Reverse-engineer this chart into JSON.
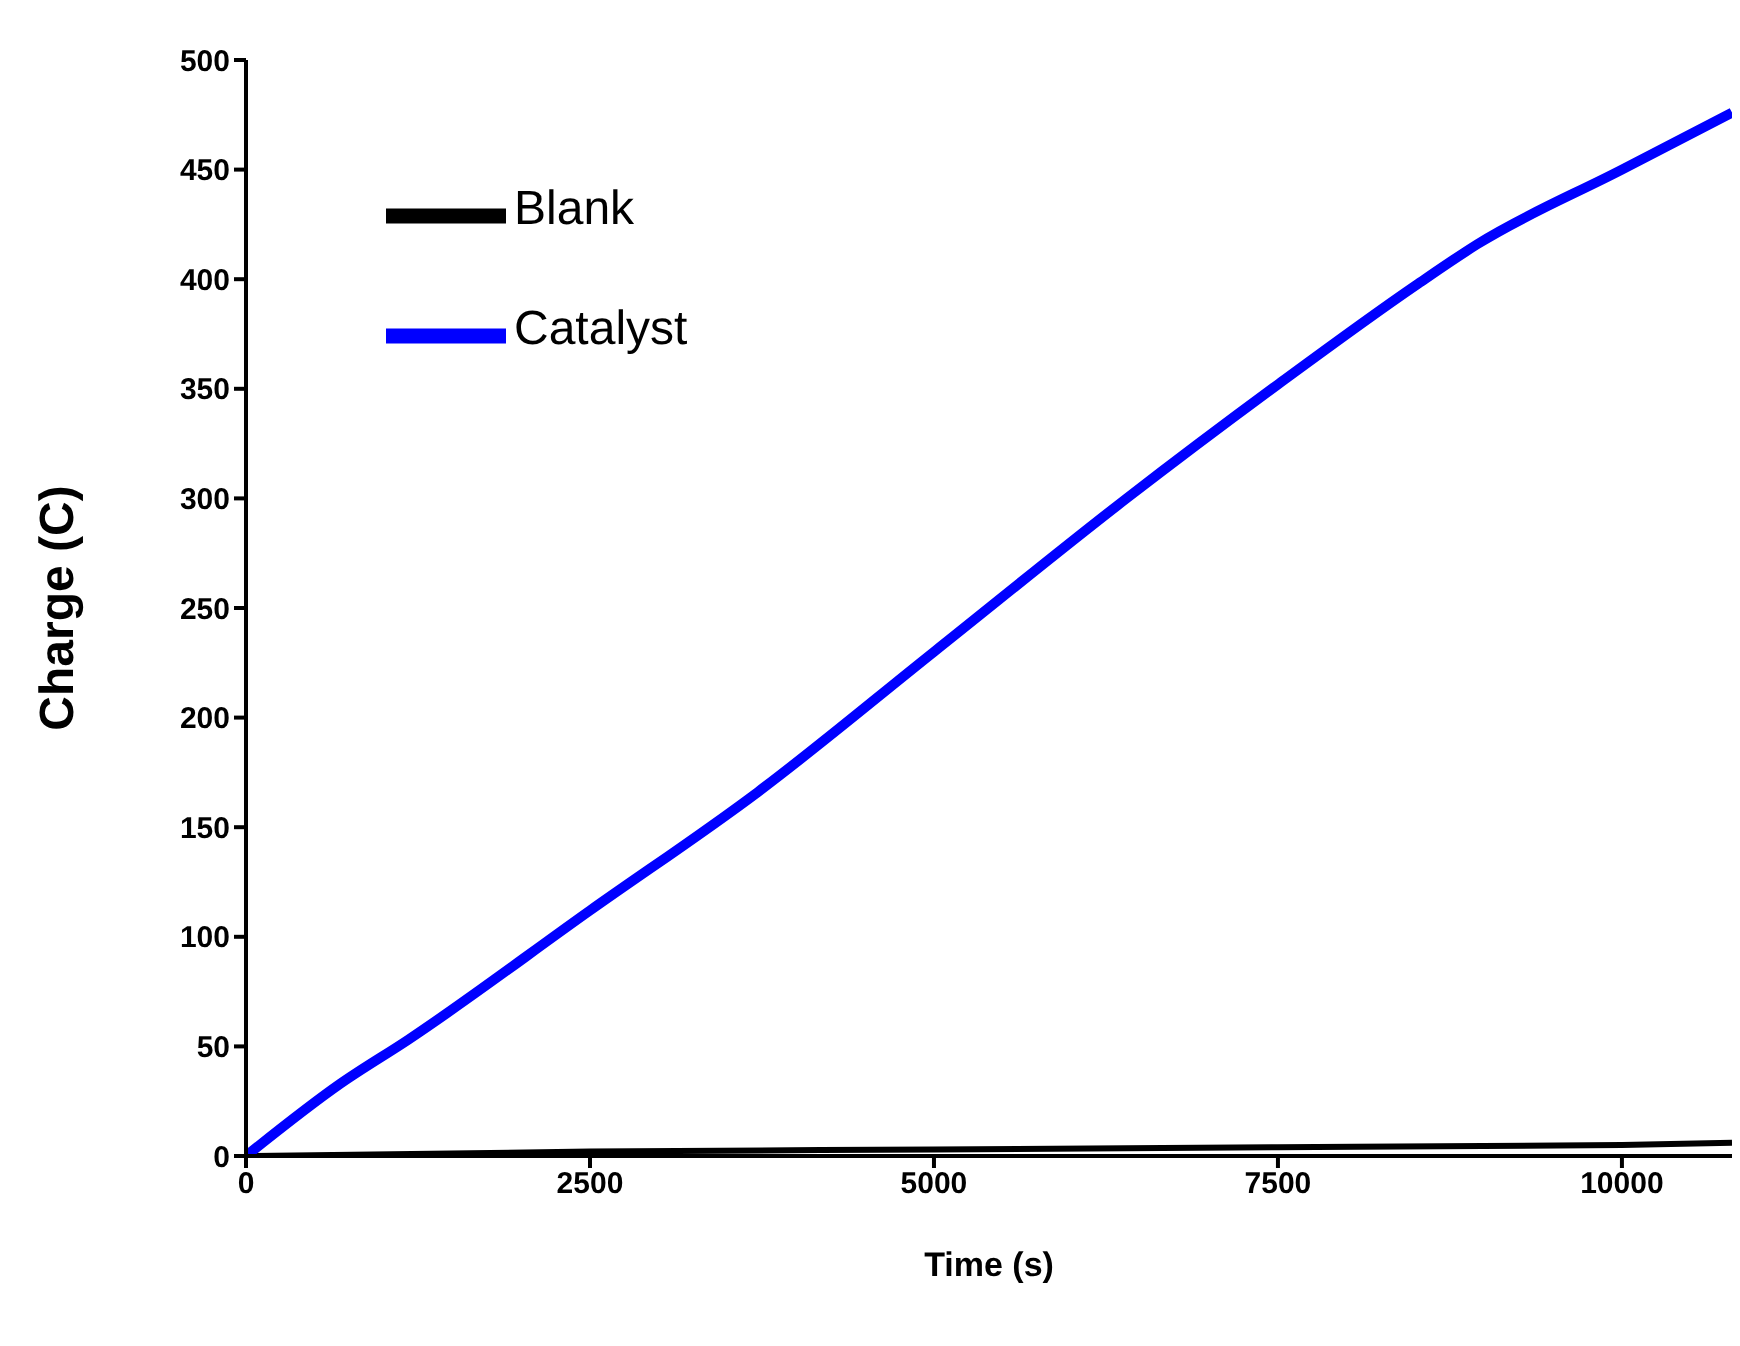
{
  "chart_data": {
    "type": "line",
    "xlabel": "Time (s)",
    "ylabel": "Charge (C)",
    "xlim": [
      0,
      10800
    ],
    "xticks": [
      0,
      2500,
      5000,
      7500,
      10000
    ],
    "ylim": [
      0,
      500
    ],
    "yticks": [
      0,
      50,
      100,
      150,
      200,
      250,
      300,
      350,
      400,
      450,
      500
    ],
    "grid": false,
    "legend": "top left",
    "marker": "none",
    "line_style": "solid",
    "series": [
      {
        "name": "Blank",
        "color": "#000000",
        "x": [
          0,
          2500,
          5000,
          7500,
          10000,
          10800
        ],
        "values": [
          0,
          2,
          3,
          4,
          5,
          6
        ]
      },
      {
        "name": "Catalyst",
        "color": "#0000ff",
        "x": [
          0,
          686,
          1178,
          2500,
          3719,
          5000,
          6400,
          7500,
          8520,
          8950,
          10000,
          10800
        ],
        "values": [
          0,
          33,
          53,
          112,
          166,
          230,
          300,
          352,
          398,
          416,
          450,
          476
        ]
      }
    ]
  }
}
